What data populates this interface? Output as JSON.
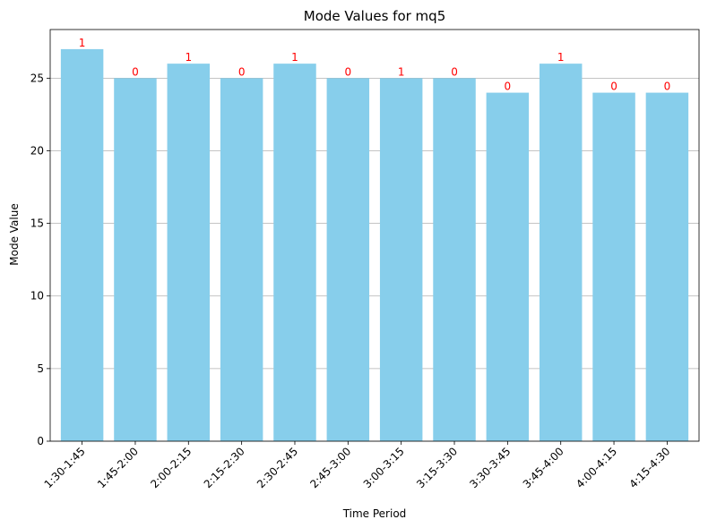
{
  "chart_data": {
    "type": "bar",
    "title": "Mode Values for mq5",
    "xlabel": "Time Period",
    "ylabel": "Mode Value",
    "ylim": [
      0,
      28.35
    ],
    "yticks": [
      0,
      5,
      10,
      15,
      20,
      25
    ],
    "grid": "y",
    "bar_color": "#87ceeb",
    "label_color": "#ff0000",
    "categories": [
      "1:30-1:45",
      "1:45-2:00",
      "2:00-2:15",
      "2:15-2:30",
      "2:30-2:45",
      "2:45-3:00",
      "3:00-3:15",
      "3:15-3:30",
      "3:30-3:45",
      "3:45-4:00",
      "4:00-4:15",
      "4:15-4:30"
    ],
    "values": [
      27,
      25,
      26,
      25,
      26,
      25,
      25,
      25,
      24,
      26,
      24,
      24
    ],
    "data_labels": [
      "1",
      "0",
      "1",
      "0",
      "1",
      "0",
      "1",
      "0",
      "0",
      "1",
      "0",
      "0"
    ]
  }
}
